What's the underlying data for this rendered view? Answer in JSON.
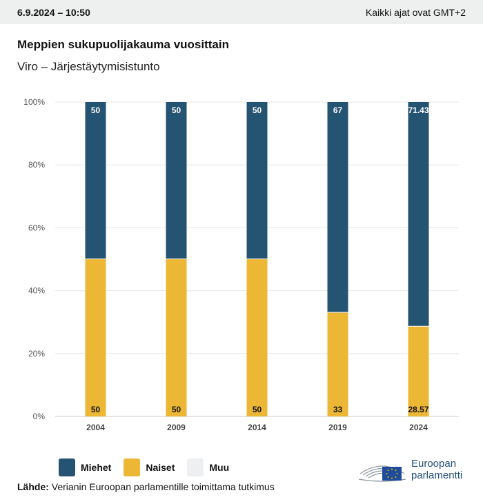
{
  "header": {
    "date": "6.9.2024 – 10:50",
    "timezone": "Kaikki ajat ovat GMT+2"
  },
  "chart_data": {
    "type": "bar",
    "stacked": true,
    "title": "Meppien sukupuolijakauma vuosittain",
    "subtitle": "Viro – Järjestäytymisistunto",
    "categories": [
      "2004",
      "2009",
      "2014",
      "2019",
      "2024"
    ],
    "series": [
      {
        "name": "Naiset",
        "color": "#ecb734",
        "values": [
          50,
          50,
          50,
          33,
          28.57
        ],
        "labels": [
          "50",
          "50",
          "50",
          "33",
          "28.57"
        ]
      },
      {
        "name": "Miehet",
        "color": "#255372",
        "values": [
          50,
          50,
          50,
          67,
          71.43
        ],
        "labels": [
          "50",
          "50",
          "50",
          "67",
          "71.43"
        ]
      },
      {
        "name": "Muu",
        "color": "#eeeff1",
        "values": [
          0,
          0,
          0,
          0,
          0
        ]
      }
    ],
    "y_ticks": [
      "0%",
      "20%",
      "40%",
      "60%",
      "80%",
      "100%"
    ],
    "ylim": [
      0,
      100
    ],
    "grid": true,
    "legend_position": "bottom-left"
  },
  "legend": [
    {
      "label": "Miehet",
      "color": "#255372"
    },
    {
      "label": "Naiset",
      "color": "#ecb734"
    },
    {
      "label": "Muu",
      "color": "#eeeff1"
    }
  ],
  "source": {
    "label": "Lähde:",
    "text": " Verianin Euroopan parlamentille toimittama tutkimus"
  },
  "logo": {
    "line1": "Euroopan",
    "line2": "parlamentti"
  }
}
